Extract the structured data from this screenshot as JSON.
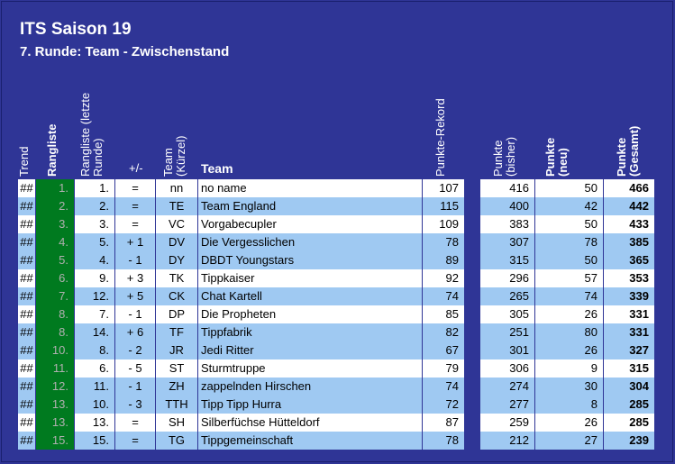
{
  "title": "ITS Saison 19",
  "subtitle": "7. Runde: Team - Zwischenstand",
  "headers": {
    "trend": "Trend",
    "rangliste": "Rangliste",
    "rangliste_letzte": "Rangliste (letzte Runde)",
    "plusminus": "+/-",
    "team_kuerzel": "Team (Kürzel)",
    "team": "Team",
    "rekord": "Punkte-Rekord",
    "bisher": "Punkte (bisher)",
    "neu": "Punkte (neu)",
    "gesamt": "Punkte (Gesamt)"
  },
  "colors": {
    "background": "#2f3596",
    "rank_green": "#007a1f",
    "row_white": "#ffffff",
    "row_blue": "#9fc9f2"
  },
  "rows": [
    {
      "trend": "##",
      "rank": "1.",
      "last": "1.",
      "diff": "=",
      "code": "nn",
      "team": "no name",
      "record": "107",
      "prev": "416",
      "new": "50",
      "total": "466",
      "hl": false
    },
    {
      "trend": "##",
      "rank": "2.",
      "last": "2.",
      "diff": "=",
      "code": "TE",
      "team": "Team England",
      "record": "115",
      "prev": "400",
      "new": "42",
      "total": "442",
      "hl": true
    },
    {
      "trend": "##",
      "rank": "3.",
      "last": "3.",
      "diff": "=",
      "code": "VC",
      "team": "Vorgabecupler",
      "record": "109",
      "prev": "383",
      "new": "50",
      "total": "433",
      "hl": false
    },
    {
      "trend": "##",
      "rank": "4.",
      "last": "5.",
      "diff": "+ 1",
      "code": "DV",
      "team": "Die Vergesslichen",
      "record": "78",
      "prev": "307",
      "new": "78",
      "total": "385",
      "hl": true
    },
    {
      "trend": "##",
      "rank": "5.",
      "last": "4.",
      "diff": "- 1",
      "code": "DY",
      "team": "DBDT Youngstars",
      "record": "89",
      "prev": "315",
      "new": "50",
      "total": "365",
      "hl": true
    },
    {
      "trend": "##",
      "rank": "6.",
      "last": "9.",
      "diff": "+ 3",
      "code": "TK",
      "team": "Tippkaiser",
      "record": "92",
      "prev": "296",
      "new": "57",
      "total": "353",
      "hl": false
    },
    {
      "trend": "##",
      "rank": "7.",
      "last": "12.",
      "diff": "+ 5",
      "code": "CK",
      "team": "Chat Kartell",
      "record": "74",
      "prev": "265",
      "new": "74",
      "total": "339",
      "hl": true
    },
    {
      "trend": "##",
      "rank": "8.",
      "last": "7.",
      "diff": "- 1",
      "code": "DP",
      "team": "Die Propheten",
      "record": "85",
      "prev": "305",
      "new": "26",
      "total": "331",
      "hl": false
    },
    {
      "trend": "##",
      "rank": "8.",
      "last": "14.",
      "diff": "+ 6",
      "code": "TF",
      "team": "Tippfabrik",
      "record": "82",
      "prev": "251",
      "new": "80",
      "total": "331",
      "hl": true
    },
    {
      "trend": "##",
      "rank": "10.",
      "last": "8.",
      "diff": "- 2",
      "code": "JR",
      "team": "Jedi Ritter",
      "record": "67",
      "prev": "301",
      "new": "26",
      "total": "327",
      "hl": true
    },
    {
      "trend": "##",
      "rank": "11.",
      "last": "6.",
      "diff": "- 5",
      "code": "ST",
      "team": "Sturmtruppe",
      "record": "79",
      "prev": "306",
      "new": "9",
      "total": "315",
      "hl": false
    },
    {
      "trend": "##",
      "rank": "12.",
      "last": "11.",
      "diff": "- 1",
      "code": "ZH",
      "team": "zappelnden Hirschen",
      "record": "74",
      "prev": "274",
      "new": "30",
      "total": "304",
      "hl": true
    },
    {
      "trend": "##",
      "rank": "13.",
      "last": "10.",
      "diff": "- 3",
      "code": "TTH",
      "team": "Tipp Tipp Hurra",
      "record": "72",
      "prev": "277",
      "new": "8",
      "total": "285",
      "hl": true
    },
    {
      "trend": "##",
      "rank": "13.",
      "last": "13.",
      "diff": "=",
      "code": "SH",
      "team": "Silberfüchse Hütteldorf",
      "record": "87",
      "prev": "259",
      "new": "26",
      "total": "285",
      "hl": false
    },
    {
      "trend": "##",
      "rank": "15.",
      "last": "15.",
      "diff": "=",
      "code": "TG",
      "team": "Tippgemeinschaft",
      "record": "78",
      "prev": "212",
      "new": "27",
      "total": "239",
      "hl": true
    }
  ]
}
